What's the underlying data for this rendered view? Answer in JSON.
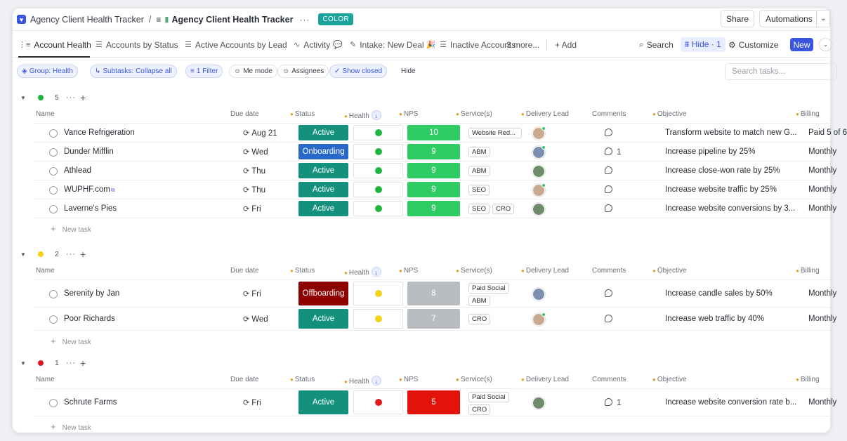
{
  "breadcrumb": {
    "space": "Agency Client Health Tracker",
    "separator": "/",
    "list": "Agency Client Health Tracker",
    "badge": "COLOR"
  },
  "topbar": {
    "share": "Share",
    "automations": "Automations"
  },
  "tabs": [
    {
      "label": "Account Health"
    },
    {
      "label": "Accounts by Status"
    },
    {
      "label": "Active Accounts by Lead"
    },
    {
      "label": "Activity"
    },
    {
      "label": "Intake: New Deal"
    },
    {
      "label": "Inactive Accounts"
    }
  ],
  "tab_more": "3 more...",
  "tab_add": "+ Add",
  "tools": {
    "search": "Search",
    "hide": "Hide · 1",
    "customize": "Customize",
    "new": "New"
  },
  "filters": {
    "group": "Group: Health",
    "subtasks": "Subtasks: Collapse all",
    "filter": "1 Filter",
    "me_mode": "Me mode",
    "assignees": "Assignees",
    "show_closed": "Show closed",
    "hide": "Hide",
    "search_placeholder": "Search tasks..."
  },
  "columns": {
    "name": "Name",
    "due": "Due date",
    "status": "Status",
    "health": "Health",
    "nps": "NPS",
    "services": "Service(s)",
    "lead": "Delivery Lead",
    "comments": "Comments",
    "objective": "Objective",
    "billing": "Billing"
  },
  "new_task": "New task",
  "groups": [
    {
      "count": "5",
      "color": "#1fb33f",
      "rows": [
        {
          "name": "Vance Refrigeration",
          "due": "Aug 21",
          "status": "Active",
          "status_color": "#14917c",
          "health_color": "#1fb33f",
          "nps": "10",
          "nps_color": "#2ecc63",
          "services": [
            "Website Red..."
          ],
          "comments": "",
          "objective": "Transform website to match new G...",
          "billing": "Paid 5 of 6"
        },
        {
          "name": "Dunder Mifflin",
          "due": "Wed",
          "status": "Onboarding",
          "status_color": "#2a68c8",
          "health_color": "#1fb33f",
          "nps": "9",
          "nps_color": "#2ecc63",
          "services": [
            "ABM"
          ],
          "comments": "1",
          "objective": "Increase pipeline by 25%",
          "billing": "Monthly"
        },
        {
          "name": "Athlead",
          "due": "Thu",
          "status": "Active",
          "status_color": "#14917c",
          "health_color": "#1fb33f",
          "nps": "9",
          "nps_color": "#2ecc63",
          "services": [
            "ABM"
          ],
          "comments": "",
          "objective": "Increase close-won rate by 25%",
          "billing": "Monthly"
        },
        {
          "name": "WUPHF.com",
          "due": "Thu",
          "status": "Active",
          "status_color": "#14917c",
          "health_color": "#1fb33f",
          "nps": "9",
          "nps_color": "#2ecc63",
          "services": [
            "SEO"
          ],
          "comments": "",
          "objective": "Increase website traffic by 25%",
          "billing": "Monthly"
        },
        {
          "name": "Laverne's Pies",
          "due": "Fri",
          "status": "Active",
          "status_color": "#14917c",
          "health_color": "#1fb33f",
          "nps": "9",
          "nps_color": "#2ecc63",
          "services": [
            "SEO",
            "CRO"
          ],
          "comments": "",
          "objective": "Increase website conversions by 3...",
          "billing": "Monthly"
        }
      ]
    },
    {
      "count": "2",
      "color": "#f3d21c",
      "rows": [
        {
          "name": "Serenity by Jan",
          "due": "Fri",
          "status": "Offboarding",
          "status_color": "#8c0000",
          "health_color": "#f3d21c",
          "nps": "8",
          "nps_color": "#b9bcc1",
          "services": [
            "Paid Social",
            "ABM"
          ],
          "comments": "",
          "objective": "Increase candle sales by 50%",
          "billing": "Monthly"
        },
        {
          "name": "Poor Richards",
          "due": "Wed",
          "status": "Active",
          "status_color": "#14917c",
          "health_color": "#f3d21c",
          "nps": "7",
          "nps_color": "#b9bcc1",
          "services": [
            "CRO"
          ],
          "comments": "",
          "objective": "Increase web traffic by 40%",
          "billing": "Monthly"
        }
      ]
    },
    {
      "count": "1",
      "color": "#e0191d",
      "rows": [
        {
          "name": "Schrute Farms",
          "due": "Fri",
          "status": "Active",
          "status_color": "#14917c",
          "health_color": "#e0191d",
          "nps": "5",
          "nps_color": "#e3120b",
          "services": [
            "Paid Social",
            "CRO"
          ],
          "comments": "1",
          "objective": "Increase website conversion rate b...",
          "billing": "Monthly"
        }
      ]
    }
  ]
}
